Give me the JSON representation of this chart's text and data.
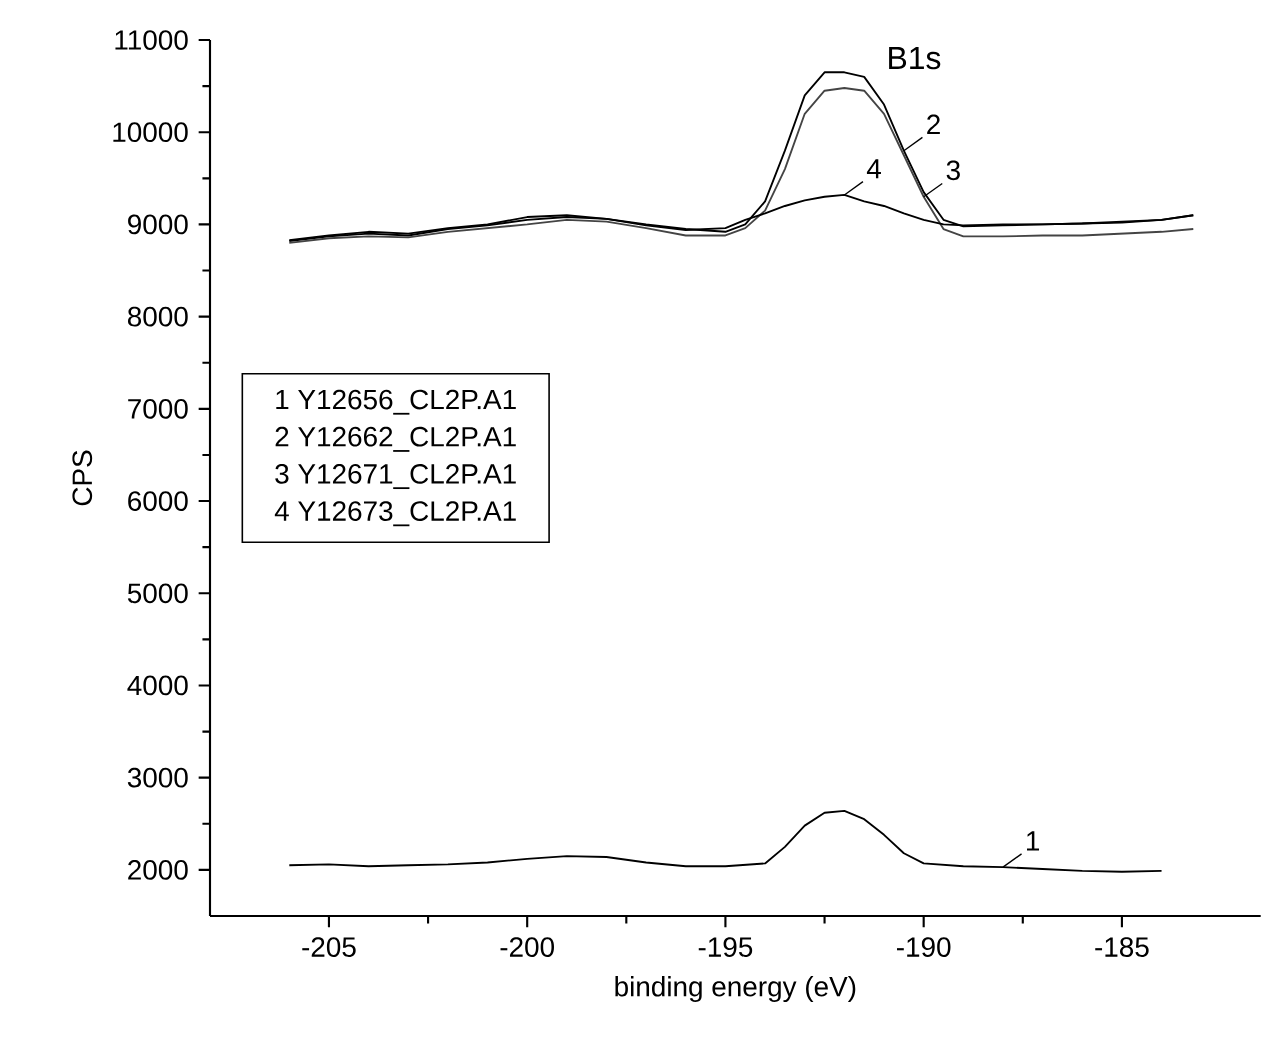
{
  "chart_data": {
    "type": "line",
    "title": "B1s",
    "xlabel": "binding energy (eV)",
    "ylabel": "CPS",
    "xlim": [
      -208,
      -181.5
    ],
    "xticks": [
      -205,
      -200,
      -195,
      -190,
      -185
    ],
    "ylim": [
      1500,
      11000
    ],
    "yticks": [
      2000,
      3000,
      4000,
      5000,
      6000,
      7000,
      8000,
      9000,
      10000,
      11000
    ],
    "grid": false,
    "marker": "none",
    "line_style": "solid",
    "x": [
      -206,
      -205,
      -204,
      -203,
      -202,
      -201,
      -200,
      -199,
      -198,
      -197,
      -196,
      -195,
      -194.5,
      -194,
      -193.5,
      -193,
      -192.5,
      -192,
      -191.5,
      -191,
      -190.5,
      -190,
      -189.5,
      -189,
      -188,
      -187,
      -186,
      -185,
      -184,
      -183.2
    ],
    "series": [
      {
        "color": "#000000",
        "x": [
          -206,
          -205,
          -204,
          -203,
          -202,
          -201,
          -200,
          -199,
          -198,
          -197,
          -196,
          -195,
          -194,
          -193.5,
          -193,
          -192.5,
          -192,
          -191.5,
          -191,
          -190.5,
          -190,
          -189,
          -188,
          -187,
          -186,
          -185,
          -184
        ],
        "values": [
          2050,
          2060,
          2040,
          2050,
          2060,
          2080,
          2120,
          2150,
          2140,
          2080,
          2040,
          2040,
          2070,
          2250,
          2480,
          2620,
          2640,
          2550,
          2380,
          2180,
          2070,
          2040,
          2030,
          2010,
          1990,
          1980,
          1990
        ]
      },
      {
        "color": "#000000",
        "values": [
          8820,
          8870,
          8900,
          8880,
          8950,
          8990,
          9050,
          9080,
          9060,
          9000,
          8950,
          8920,
          9000,
          9250,
          9800,
          10400,
          10650,
          10650,
          10600,
          10300,
          9800,
          9350,
          9050,
          8980,
          8990,
          9000,
          9010,
          9030,
          9050,
          9100
        ]
      },
      {
        "color": "#444444",
        "values": [
          8800,
          8850,
          8870,
          8860,
          8920,
          8960,
          9000,
          9050,
          9030,
          8960,
          8880,
          8880,
          8960,
          9150,
          9600,
          10200,
          10450,
          10480,
          10450,
          10200,
          9750,
          9300,
          8950,
          8870,
          8870,
          8880,
          8880,
          8900,
          8920,
          8950
        ]
      },
      {
        "color": "#000000",
        "values": [
          8830,
          8880,
          8920,
          8900,
          8960,
          9000,
          9080,
          9100,
          9060,
          8990,
          8940,
          8960,
          9050,
          9120,
          9200,
          9260,
          9300,
          9320,
          9250,
          9200,
          9120,
          9050,
          9000,
          8990,
          9000,
          9000,
          9010,
          9020,
          9050,
          9100
        ]
      }
    ],
    "annotations": [
      "1 Y12656_CL2P.A1",
      "2 Y12662_CL2P.A1",
      "3 Y12671_CL2P.A1",
      "4 Y12673_CL2P.A1",
      {
        "text": "2",
        "x": -190.5,
        "y": 9800
      },
      {
        "text": "3",
        "x": -190,
        "y": 9300
      },
      {
        "text": "4",
        "x": -192,
        "y": 9320
      },
      {
        "text": "1",
        "x": -188,
        "y": 2030
      }
    ]
  }
}
